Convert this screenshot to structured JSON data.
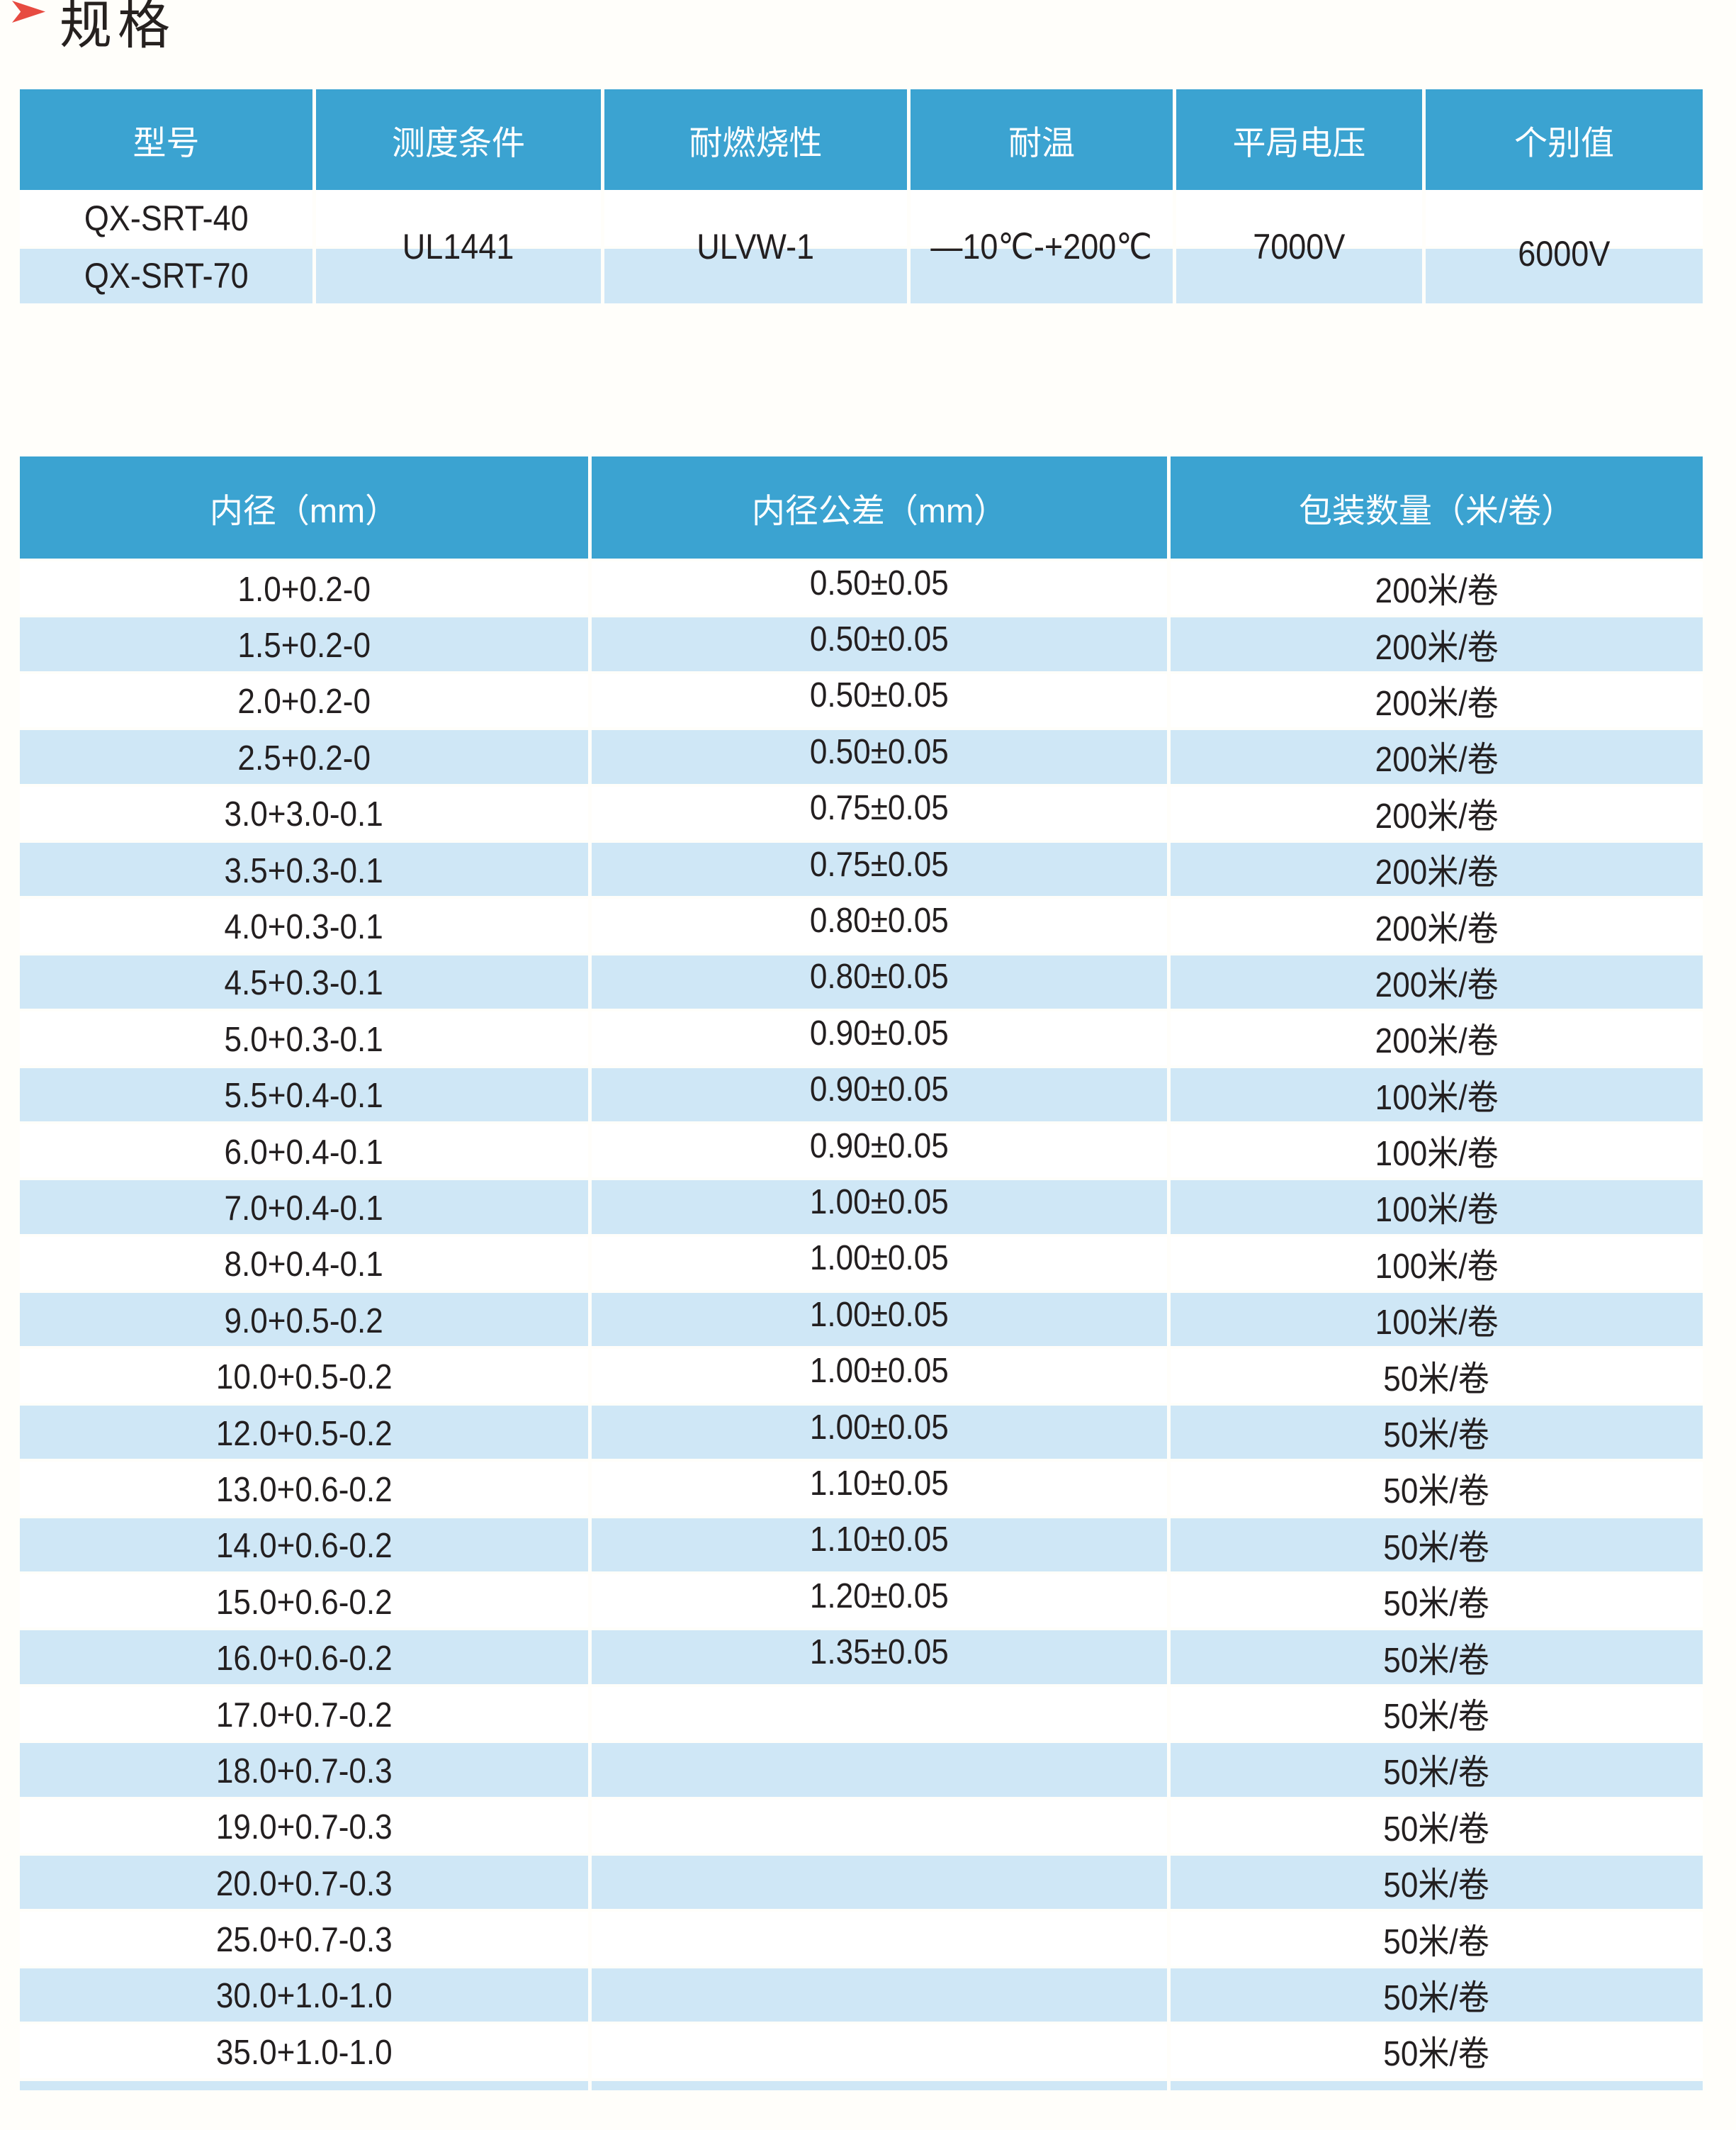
{
  "page": {
    "title": "规格"
  },
  "colors": {
    "header_blue": "#3ba3d1",
    "stripe_blue": "#cfe7f6",
    "arrow_red": "#e74b41",
    "text_dark": "#231f20"
  },
  "table1": {
    "headers": [
      "型号",
      "测度条件",
      "耐燃烧性",
      "耐温",
      "平局电压",
      "个别值"
    ],
    "models": [
      "QX-SRT-40",
      "QX-SRT-70"
    ],
    "merged": {
      "condition": "UL1441",
      "flame": "ULVW-1",
      "temp": "—10℃-+200℃",
      "voltage": "7000V",
      "individual": "6000V"
    }
  },
  "table2": {
    "headers": [
      "内径（mm）",
      "内径公差（mm）",
      "包装数量（米/卷）"
    ],
    "rows": [
      {
        "d": "1.0+0.2-0",
        "tol": "0.50±0.05",
        "qty": "200米/卷"
      },
      {
        "d": "1.5+0.2-0",
        "tol": "0.50±0.05",
        "qty": "200米/卷"
      },
      {
        "d": "2.0+0.2-0",
        "tol": "0.50±0.05",
        "qty": "200米/卷"
      },
      {
        "d": "2.5+0.2-0",
        "tol": "0.50±0.05",
        "qty": "200米/卷"
      },
      {
        "d": "3.0+3.0-0.1",
        "tol": "0.75±0.05",
        "qty": "200米/卷"
      },
      {
        "d": "3.5+0.3-0.1",
        "tol": "0.75±0.05",
        "qty": "200米/卷"
      },
      {
        "d": "4.0+0.3-0.1",
        "tol": "0.80±0.05",
        "qty": "200米/卷"
      },
      {
        "d": "4.5+0.3-0.1",
        "tol": "0.80±0.05",
        "qty": "200米/卷"
      },
      {
        "d": "5.0+0.3-0.1",
        "tol": "0.90±0.05",
        "qty": "200米/卷"
      },
      {
        "d": "5.5+0.4-0.1",
        "tol": "0.90±0.05",
        "qty": "100米/卷"
      },
      {
        "d": "6.0+0.4-0.1",
        "tol": "0.90±0.05",
        "qty": "100米/卷"
      },
      {
        "d": "7.0+0.4-0.1",
        "tol": "1.00±0.05",
        "qty": "100米/卷"
      },
      {
        "d": "8.0+0.4-0.1",
        "tol": "1.00±0.05",
        "qty": "100米/卷"
      },
      {
        "d": "9.0+0.5-0.2",
        "tol": "1.00±0.05",
        "qty": "100米/卷"
      },
      {
        "d": "10.0+0.5-0.2",
        "tol": "1.00±0.05",
        "qty": "50米/卷"
      },
      {
        "d": "12.0+0.5-0.2",
        "tol": "1.00±0.05",
        "qty": "50米/卷"
      },
      {
        "d": "13.0+0.6-0.2",
        "tol": "1.10±0.05",
        "qty": "50米/卷"
      },
      {
        "d": "14.0+0.6-0.2",
        "tol": "1.10±0.05",
        "qty": "50米/卷"
      },
      {
        "d": "15.0+0.6-0.2",
        "tol": "1.20±0.05",
        "qty": "50米/卷"
      },
      {
        "d": "16.0+0.6-0.2",
        "tol": "1.35±0.05",
        "qty": "50米/卷"
      },
      {
        "d": "17.0+0.7-0.2",
        "tol": "",
        "qty": "50米/卷"
      },
      {
        "d": "18.0+0.7-0.3",
        "tol": "",
        "qty": "50米/卷"
      },
      {
        "d": "19.0+0.7-0.3",
        "tol": "",
        "qty": "50米/卷"
      },
      {
        "d": "20.0+0.7-0.3",
        "tol": "",
        "qty": "50米/卷"
      },
      {
        "d": "25.0+0.7-0.3",
        "tol": "",
        "qty": "50米/卷"
      },
      {
        "d": "30.0+1.0-1.0",
        "tol": "",
        "qty": "50米/卷"
      },
      {
        "d": "35.0+1.0-1.0",
        "tol": "",
        "qty": "50米/卷"
      }
    ]
  }
}
